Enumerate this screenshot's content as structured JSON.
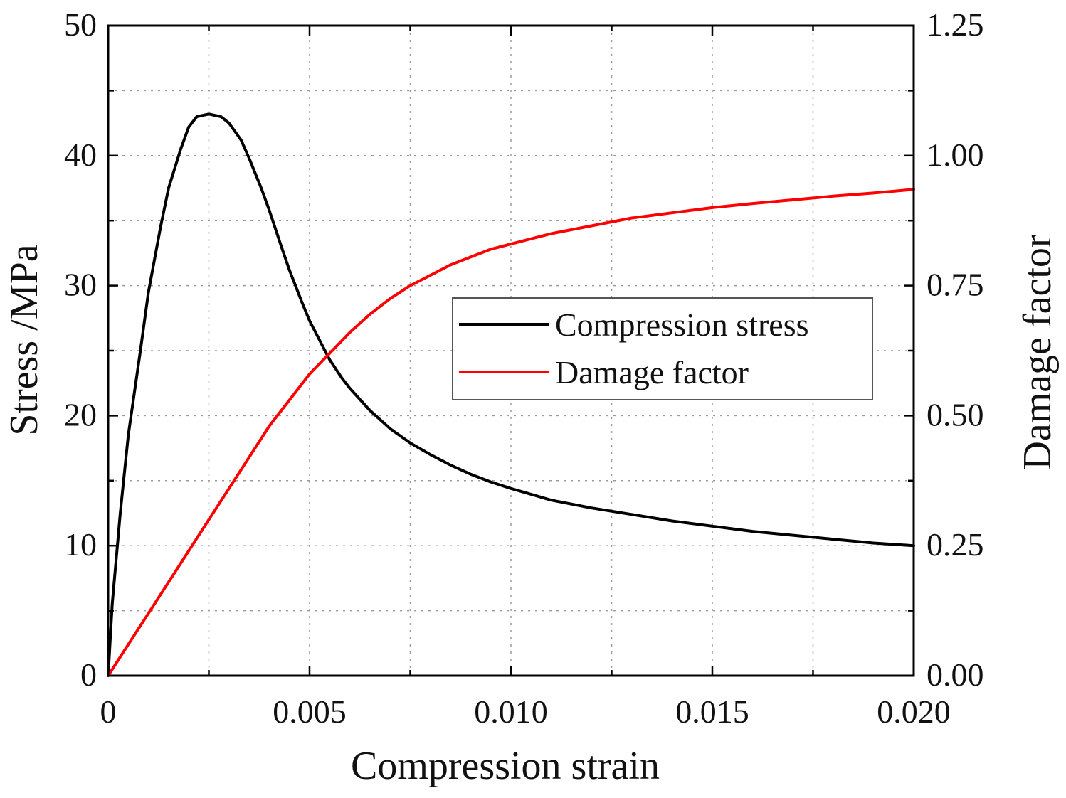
{
  "chart_data": {
    "type": "line",
    "title": "",
    "xlabel": "Compression strain",
    "ylabel": "Stress /MPa",
    "y2label": "Damage factor",
    "xlim": [
      0,
      0.02
    ],
    "ylim": [
      0,
      50
    ],
    "y2lim": [
      0,
      1.25
    ],
    "xticks": [
      0,
      0.005,
      0.01,
      0.015,
      0.02
    ],
    "xtick_labels": [
      "0",
      "0.005",
      "0.010",
      "0.015",
      "0.020"
    ],
    "yticks": [
      0,
      10,
      20,
      30,
      40,
      50
    ],
    "ytick_labels": [
      "0",
      "10",
      "20",
      "30",
      "40",
      "50"
    ],
    "y2ticks": [
      0,
      0.25,
      0.5,
      0.75,
      1.0,
      1.25
    ],
    "y2tick_labels": [
      "0.00",
      "0.25",
      "0.50",
      "0.75",
      "1.00",
      "1.25"
    ],
    "grid": true,
    "legend_position": "center-right",
    "series": [
      {
        "name": "Compression stress",
        "axis": "left",
        "color": "#000000",
        "x": [
          0,
          0.0001,
          0.0003,
          0.0005,
          0.0008,
          0.001,
          0.0013,
          0.0015,
          0.0018,
          0.002,
          0.0022,
          0.0025,
          0.0028,
          0.003,
          0.0033,
          0.0035,
          0.0038,
          0.004,
          0.0043,
          0.0045,
          0.0048,
          0.005,
          0.0053,
          0.0055,
          0.0058,
          0.006,
          0.0065,
          0.007,
          0.0075,
          0.008,
          0.0085,
          0.009,
          0.0095,
          0.01,
          0.011,
          0.012,
          0.013,
          0.014,
          0.015,
          0.016,
          0.017,
          0.018,
          0.019,
          0.02
        ],
        "y": [
          0,
          5.5,
          12.5,
          18.5,
          25,
          29.5,
          34.5,
          37.5,
          40.5,
          42.2,
          43.0,
          43.2,
          43.0,
          42.5,
          41.2,
          39.8,
          37.5,
          35.8,
          33.0,
          31.2,
          28.8,
          27.3,
          25.5,
          24.3,
          22.9,
          22.1,
          20.4,
          19.0,
          17.9,
          17.0,
          16.2,
          15.5,
          14.9,
          14.4,
          13.5,
          12.9,
          12.4,
          11.9,
          11.5,
          11.1,
          10.8,
          10.5,
          10.2,
          10.0
        ]
      },
      {
        "name": "Damage factor",
        "axis": "right",
        "color": "#ff0000",
        "x": [
          0,
          0.0005,
          0.001,
          0.0015,
          0.002,
          0.0025,
          0.003,
          0.0035,
          0.004,
          0.0045,
          0.005,
          0.0055,
          0.006,
          0.0065,
          0.007,
          0.0075,
          0.008,
          0.0085,
          0.009,
          0.0095,
          0.01,
          0.011,
          0.012,
          0.013,
          0.014,
          0.015,
          0.016,
          0.017,
          0.018,
          0.019,
          0.02
        ],
        "y": [
          0,
          0.06,
          0.12,
          0.18,
          0.24,
          0.3,
          0.36,
          0.42,
          0.48,
          0.53,
          0.58,
          0.62,
          0.66,
          0.695,
          0.725,
          0.75,
          0.77,
          0.79,
          0.805,
          0.82,
          0.83,
          0.85,
          0.865,
          0.88,
          0.89,
          0.9,
          0.908,
          0.915,
          0.922,
          0.928,
          0.935
        ]
      }
    ]
  }
}
